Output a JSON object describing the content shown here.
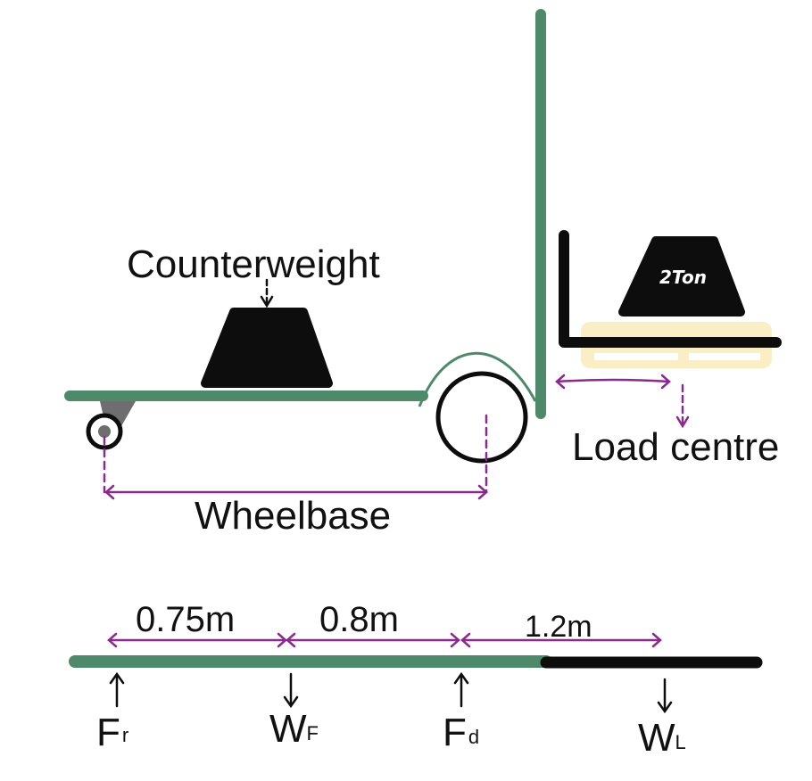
{
  "colors": {
    "frame": "#4e8a6a",
    "dimension": "#8a2a8e",
    "pallet": "#faefc4",
    "black": "#0d0d0d",
    "hub": "#6e6e6e"
  },
  "labels": {
    "counterweight": "Counterweight",
    "load_tag": "2Ton",
    "load_centre": "Load centre",
    "wheelbase": "Wheelbase"
  },
  "beam": {
    "dims": [
      "0.75m",
      "0.8m",
      "1.2m"
    ],
    "forces": [
      {
        "symbol": "F",
        "sub": "r",
        "direction": "up"
      },
      {
        "symbol": "W",
        "sub": "F",
        "direction": "down"
      },
      {
        "symbol": "F",
        "sub": "d",
        "direction": "up"
      },
      {
        "symbol": "W",
        "sub": "L",
        "direction": "down"
      }
    ]
  }
}
